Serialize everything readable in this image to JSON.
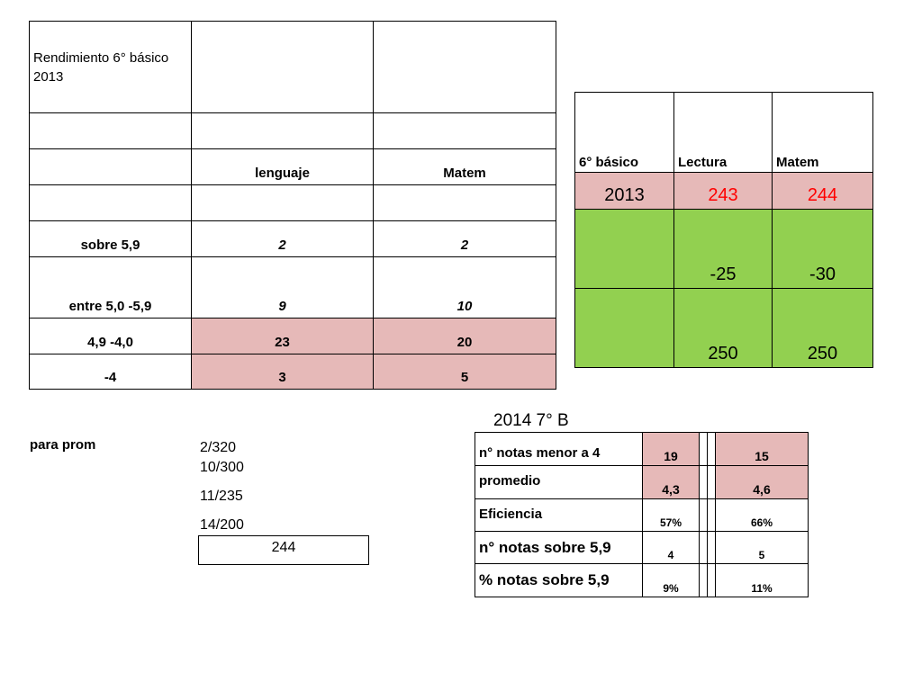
{
  "table1": {
    "title": "Rendimiento 6° básico 2013",
    "col_lenguaje": "lenguaje",
    "col_matem": "Matem",
    "rows": [
      {
        "label": "sobre 5,9",
        "lenguaje": "2",
        "matem": "2"
      },
      {
        "label": "entre 5,0 -5,9",
        "lenguaje": "9",
        "matem": "10"
      },
      {
        "label": "4,9 -4,0",
        "lenguaje": "23",
        "matem": "20"
      },
      {
        "label": "-4",
        "lenguaje": "3",
        "matem": "5"
      }
    ]
  },
  "table2": {
    "header": [
      "6° básico",
      "Lectura",
      "Matem"
    ],
    "row_2013": {
      "label": "2013",
      "lectura": "243",
      "matem": "244"
    },
    "row_diff": {
      "lectura": "-25",
      "matem": "-30"
    },
    "row_target": {
      "lectura": "250",
      "matem": "250"
    },
    "colors": {
      "pink": "#e6b9b8",
      "green": "#92d050",
      "red": "#ff0000"
    }
  },
  "notes": {
    "label": "para prom",
    "values": [
      "2/320",
      "10/300",
      "11/235",
      "14/200"
    ],
    "result": "244"
  },
  "table3": {
    "title": "2014  7° B",
    "rows": [
      {
        "label": "n° notas menor a 4",
        "a": "19",
        "b": "15"
      },
      {
        "label": "promedio",
        "a": "4,3",
        "b": "4,6"
      },
      {
        "label": "Eficiencia",
        "a": "57%",
        "b": "66%"
      },
      {
        "label": "n° notas sobre 5,9",
        "a": "4",
        "b": "5"
      },
      {
        "label": "% notas sobre 5,9",
        "a": "9%",
        "b": "11%"
      }
    ]
  }
}
